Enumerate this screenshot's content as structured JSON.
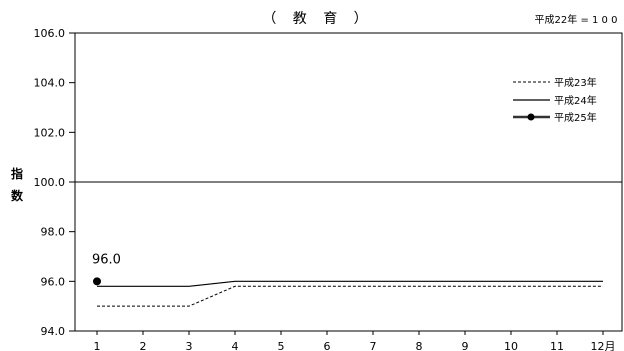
{
  "chart_data": {
    "type": "line",
    "title": "（ 教 育 ）",
    "base_note": "平成22年 = 1 0 0",
    "ylabel": [
      "指",
      "数"
    ],
    "xlabel": "",
    "x": [
      "1",
      "2",
      "3",
      "4",
      "5",
      "6",
      "7",
      "8",
      "9",
      "10",
      "11",
      "12月"
    ],
    "ylim": [
      94.0,
      106.0
    ],
    "yticks": [
      "94.0",
      "96.0",
      "98.0",
      "100.0",
      "102.0",
      "104.0",
      "106.0"
    ],
    "reference_line": 100.0,
    "legend_position": "top-right",
    "series": [
      {
        "name": "平成23年",
        "style": "dashed",
        "color": "#000000",
        "values": [
          95.0,
          95.0,
          95.0,
          95.8,
          95.8,
          95.8,
          95.8,
          95.8,
          95.8,
          95.8,
          95.8,
          95.8
        ]
      },
      {
        "name": "平成24年",
        "style": "solid",
        "color": "#000000",
        "values": [
          95.8,
          95.8,
          95.8,
          96.0,
          96.0,
          96.0,
          96.0,
          96.0,
          96.0,
          96.0,
          96.0,
          96.0
        ]
      },
      {
        "name": "平成25年",
        "style": "marker",
        "color": "#000000",
        "values": [
          96.0,
          null,
          null,
          null,
          null,
          null,
          null,
          null,
          null,
          null,
          null,
          null
        ]
      }
    ],
    "annotations": [
      {
        "text": "96.0",
        "x_index": 0,
        "series": "平成25年"
      }
    ]
  }
}
